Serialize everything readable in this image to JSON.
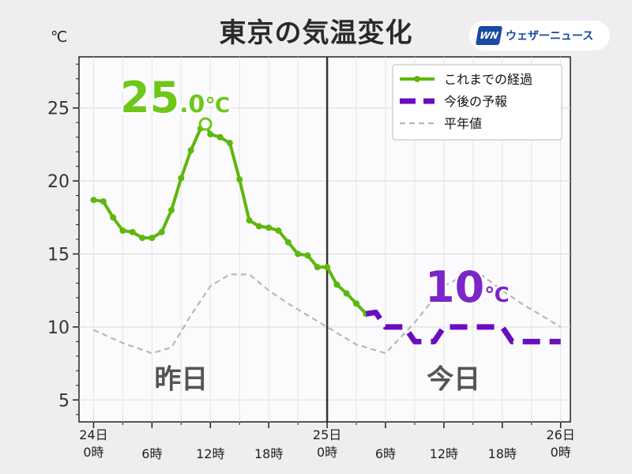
{
  "header": {
    "title": "東京の気温変化",
    "unit": "℃",
    "logo_mark": "WN",
    "logo_text": "ウェザーニュース"
  },
  "chart_data": {
    "type": "line",
    "title": "東京の気温変化",
    "ylabel": "℃",
    "ylim": [
      3.5,
      28.5
    ],
    "xlim": [
      -1.5,
      49
    ],
    "yticks": [
      5,
      10,
      15,
      20,
      25
    ],
    "xticks": [
      {
        "x": 0,
        "label": "24日\n0時"
      },
      {
        "x": 6,
        "label": "6時"
      },
      {
        "x": 12,
        "label": "12時"
      },
      {
        "x": 18,
        "label": "18時"
      },
      {
        "x": 24,
        "label": "25日\n0時"
      },
      {
        "x": 30,
        "label": "6時"
      },
      {
        "x": 36,
        "label": "12時"
      },
      {
        "x": 42,
        "label": "18時"
      },
      {
        "x": 48,
        "label": "26日\n0時"
      }
    ],
    "now_x": 24,
    "grid": true,
    "legend_position": "top-right",
    "day_labels": [
      {
        "x": 9,
        "y": 5.8,
        "text": "昨日"
      },
      {
        "x": 37,
        "y": 5.8,
        "text": "今日"
      }
    ],
    "series": [
      {
        "name": "これまでの経過",
        "color": "#5cb80c",
        "style": "solid-marker",
        "x": [
          0,
          1,
          2,
          3,
          4,
          5,
          6,
          7,
          8,
          9,
          10,
          11,
          11.5,
          12,
          13,
          14,
          15,
          16,
          17,
          18,
          19,
          20,
          21,
          22,
          23,
          24,
          25,
          26,
          27,
          28
        ],
        "y": [
          18.7,
          18.6,
          17.5,
          16.6,
          16.5,
          16.1,
          16.1,
          16.5,
          18.0,
          20.2,
          22.1,
          23.6,
          23.9,
          23.2,
          23.0,
          22.6,
          20.1,
          17.3,
          16.9,
          16.8,
          16.6,
          15.8,
          15.0,
          14.9,
          14.1,
          14.1,
          12.9,
          12.3,
          11.6,
          10.9
        ]
      },
      {
        "name": "今後の予報",
        "color": "#6a0dbf",
        "style": "dashed-thick",
        "x": [
          28,
          29,
          30,
          31,
          32,
          33,
          34,
          35,
          36,
          37,
          38,
          39,
          40,
          41,
          42,
          43,
          44,
          45,
          46,
          47,
          48
        ],
        "y": [
          10.9,
          11.0,
          10.0,
          10.0,
          10.0,
          9.0,
          9.0,
          9.0,
          10.0,
          10.0,
          10.0,
          10.0,
          10.0,
          10.0,
          10.0,
          9.0,
          9.0,
          9.0,
          9.0,
          9.0,
          9.0
        ]
      },
      {
        "name": "平年値",
        "color": "#b8b8b8",
        "style": "dashed-thin",
        "x": [
          0,
          3,
          6,
          8,
          10,
          12,
          14,
          16,
          18,
          20,
          22,
          24,
          27,
          30,
          33,
          36,
          38,
          40,
          42,
          44,
          46,
          48
        ],
        "y": [
          9.8,
          8.9,
          8.2,
          8.6,
          10.8,
          12.8,
          13.6,
          13.6,
          12.5,
          11.6,
          10.8,
          10.0,
          8.8,
          8.2,
          10.3,
          12.8,
          13.5,
          13.5,
          12.5,
          11.6,
          10.8,
          10.0
        ]
      }
    ],
    "annotations": [
      {
        "name": "max-annotation",
        "x": 11.5,
        "y": 23.9,
        "value": "25",
        "decimal": ".0",
        "unit": "℃",
        "color": "#6dc819"
      },
      {
        "name": "forecast-max-annotation",
        "x": 37,
        "y": 11.8,
        "value": "10",
        "decimal": "",
        "unit": "℃",
        "color": "#7a26c9"
      }
    ]
  }
}
